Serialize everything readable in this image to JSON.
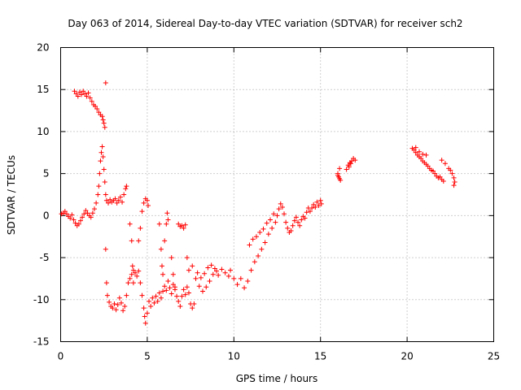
{
  "colors": {
    "series": "#ff0000",
    "grid": "#a0a0a0",
    "axis": "#000000",
    "background": "#ffffff"
  },
  "chart_data": {
    "type": "scatter",
    "title": "Day 063 of 2014, Sidereal Day-to-day VTEC variation (SDTVAR) for receiver sch2",
    "xlabel": "GPS time / hours",
    "ylabel": "SDTVAR / TECUs",
    "xlim": [
      0,
      25
    ],
    "ylim": [
      -15,
      20
    ],
    "xticks": [
      0,
      5,
      10,
      15,
      20,
      25
    ],
    "yticks": [
      -15,
      -10,
      -5,
      0,
      5,
      10,
      15,
      20
    ],
    "xtick_labels": [
      "0",
      "5",
      "10",
      "15",
      "20",
      "25"
    ],
    "ytick_labels": [
      "-15",
      "-10",
      "-5",
      "0",
      "5",
      "10",
      "15",
      "20"
    ],
    "grid": true,
    "marker": "plus",
    "series": [
      {
        "name": "SDTVAR",
        "color": "#ff0000",
        "points": [
          [
            0.05,
            0.2
          ],
          [
            0.15,
            0.3
          ],
          [
            0.25,
            0.5
          ],
          [
            0.35,
            0.2
          ],
          [
            0.45,
            -0.1
          ],
          [
            0.55,
            -0.3
          ],
          [
            0.65,
            0.1
          ],
          [
            0.75,
            -0.5
          ],
          [
            0.85,
            -0.9
          ],
          [
            0.95,
            -1.2
          ],
          [
            1.05,
            -1.0
          ],
          [
            1.15,
            -0.6
          ],
          [
            1.25,
            -0.2
          ],
          [
            1.35,
            0.2
          ],
          [
            1.45,
            0.6
          ],
          [
            1.55,
            0.3
          ],
          [
            1.65,
            0.0
          ],
          [
            1.75,
            -0.2
          ],
          [
            1.85,
            0.3
          ],
          [
            1.95,
            0.8
          ],
          [
            2.05,
            1.5
          ],
          [
            2.15,
            2.5
          ],
          [
            2.2,
            3.5
          ],
          [
            2.25,
            5.0
          ],
          [
            2.3,
            6.5
          ],
          [
            2.35,
            7.5
          ],
          [
            2.4,
            8.2
          ],
          [
            2.45,
            7.0
          ],
          [
            2.5,
            5.5
          ],
          [
            2.55,
            4.0
          ],
          [
            2.6,
            2.5
          ],
          [
            2.65,
            1.8
          ],
          [
            2.75,
            1.5
          ],
          [
            2.85,
            1.9
          ],
          [
            2.95,
            1.6
          ],
          [
            3.05,
            1.8
          ],
          [
            3.15,
            2.0
          ],
          [
            3.25,
            1.5
          ],
          [
            3.35,
            1.8
          ],
          [
            3.45,
            2.2
          ],
          [
            3.55,
            1.6
          ],
          [
            3.65,
            2.5
          ],
          [
            3.75,
            3.2
          ],
          [
            3.8,
            3.5
          ],
          [
            0.8,
            14.8
          ],
          [
            0.9,
            14.5
          ],
          [
            1.0,
            14.2
          ],
          [
            1.1,
            14.7
          ],
          [
            1.2,
            14.4
          ],
          [
            1.3,
            14.8
          ],
          [
            1.4,
            14.5
          ],
          [
            1.5,
            14.2
          ],
          [
            1.6,
            14.6
          ],
          [
            1.7,
            14.0
          ],
          [
            1.8,
            13.6
          ],
          [
            1.9,
            13.2
          ],
          [
            2.0,
            13.0
          ],
          [
            2.1,
            12.7
          ],
          [
            2.2,
            12.3
          ],
          [
            2.3,
            12.0
          ],
          [
            2.4,
            11.8
          ],
          [
            2.45,
            11.4
          ],
          [
            2.5,
            11.0
          ],
          [
            2.55,
            10.5
          ],
          [
            2.6,
            15.8
          ],
          [
            2.6,
            -4.0
          ],
          [
            2.65,
            -8.0
          ],
          [
            2.7,
            -9.5
          ],
          [
            2.8,
            -10.3
          ],
          [
            2.9,
            -10.8
          ],
          [
            3.0,
            -11.0
          ],
          [
            3.1,
            -10.5
          ],
          [
            3.2,
            -11.2
          ],
          [
            3.3,
            -10.6
          ],
          [
            3.4,
            -9.8
          ],
          [
            3.5,
            -10.4
          ],
          [
            3.6,
            -11.3
          ],
          [
            3.7,
            -10.8
          ],
          [
            3.8,
            -9.5
          ],
          [
            3.9,
            -8.0
          ],
          [
            4.0,
            -7.5
          ],
          [
            4.1,
            -7.0
          ],
          [
            4.2,
            -6.5
          ],
          [
            4.3,
            -6.8
          ],
          [
            4.4,
            -7.2
          ],
          [
            4.5,
            -6.6
          ],
          [
            4.0,
            -1.0
          ],
          [
            4.1,
            -3.0
          ],
          [
            4.15,
            -6.0
          ],
          [
            4.2,
            -8.0
          ],
          [
            4.5,
            -3.0
          ],
          [
            4.6,
            -1.5
          ],
          [
            4.7,
            0.5
          ],
          [
            4.8,
            1.5
          ],
          [
            4.9,
            2.0
          ],
          [
            5.0,
            1.8
          ],
          [
            5.05,
            1.2
          ],
          [
            4.6,
            -8.0
          ],
          [
            4.7,
            -9.5
          ],
          [
            4.8,
            -11.0
          ],
          [
            4.85,
            -12.0
          ],
          [
            4.9,
            -12.8
          ],
          [
            5.0,
            -11.6
          ],
          [
            5.1,
            -10.2
          ],
          [
            5.2,
            -10.8
          ],
          [
            5.3,
            -9.8
          ],
          [
            5.4,
            -10.4
          ],
          [
            5.5,
            -9.6
          ],
          [
            5.6,
            -10.2
          ],
          [
            5.7,
            -9.2
          ],
          [
            5.8,
            -9.8
          ],
          [
            5.9,
            -9.0
          ],
          [
            6.0,
            -8.4
          ],
          [
            6.1,
            -8.9
          ],
          [
            6.2,
            -7.8
          ],
          [
            6.3,
            -8.6
          ],
          [
            6.4,
            -9.3
          ],
          [
            6.5,
            -8.2
          ],
          [
            6.6,
            -8.8
          ],
          [
            6.7,
            -9.6
          ],
          [
            6.8,
            -10.2
          ],
          [
            6.9,
            -10.8
          ],
          [
            7.0,
            -9.6
          ],
          [
            7.1,
            -8.8
          ],
          [
            7.2,
            -9.4
          ],
          [
            7.3,
            -8.5
          ],
          [
            7.4,
            -9.2
          ],
          [
            7.5,
            -10.5
          ],
          [
            7.6,
            -11.0
          ],
          [
            7.7,
            -10.5
          ],
          [
            5.7,
            -1.0
          ],
          [
            5.8,
            -4.0
          ],
          [
            5.85,
            -6.0
          ],
          [
            5.9,
            -7.0
          ],
          [
            6.0,
            -3.0
          ],
          [
            6.1,
            -1.0
          ],
          [
            6.15,
            0.3
          ],
          [
            6.2,
            -0.5
          ],
          [
            6.4,
            -5.0
          ],
          [
            6.5,
            -7.0
          ],
          [
            6.6,
            -8.5
          ],
          [
            6.8,
            -1.0
          ],
          [
            6.9,
            -1.3
          ],
          [
            7.0,
            -1.2
          ],
          [
            7.1,
            -1.5
          ],
          [
            7.2,
            -1.1
          ],
          [
            7.3,
            -5.0
          ],
          [
            7.4,
            -6.5
          ],
          [
            7.6,
            -6.0
          ],
          [
            7.8,
            -7.5
          ],
          [
            8.0,
            -8.4
          ],
          [
            8.2,
            -9.0
          ],
          [
            8.4,
            -8.5
          ],
          [
            8.6,
            -7.8
          ],
          [
            8.8,
            -7.0
          ],
          [
            9.0,
            -6.6
          ],
          [
            7.9,
            -6.8
          ],
          [
            8.1,
            -7.4
          ],
          [
            8.3,
            -6.9
          ],
          [
            8.5,
            -6.2
          ],
          [
            8.7,
            -5.9
          ],
          [
            8.9,
            -6.3
          ],
          [
            9.1,
            -7.1
          ],
          [
            9.3,
            -6.4
          ],
          [
            9.5,
            -6.8
          ],
          [
            9.7,
            -7.2
          ],
          [
            9.8,
            -6.5
          ],
          [
            10.0,
            -7.5
          ],
          [
            10.2,
            -8.2
          ],
          [
            10.4,
            -7.5
          ],
          [
            10.6,
            -8.6
          ],
          [
            10.8,
            -7.8
          ],
          [
            11.0,
            -6.5
          ],
          [
            11.2,
            -5.5
          ],
          [
            11.4,
            -4.8
          ],
          [
            11.6,
            -4.0
          ],
          [
            11.8,
            -3.2
          ],
          [
            12.0,
            -2.2
          ],
          [
            12.2,
            -1.5
          ],
          [
            12.4,
            -0.8
          ],
          [
            12.5,
            0.0
          ],
          [
            12.6,
            0.8
          ],
          [
            12.7,
            1.4
          ],
          [
            12.8,
            1.0
          ],
          [
            12.9,
            0.2
          ],
          [
            13.0,
            -0.8
          ],
          [
            13.1,
            -1.5
          ],
          [
            13.2,
            -2.0
          ],
          [
            13.3,
            -1.8
          ],
          [
            13.4,
            -1.2
          ],
          [
            13.5,
            -0.6
          ],
          [
            13.6,
            -0.2
          ],
          [
            13.7,
            -0.8
          ],
          [
            13.8,
            -1.2
          ],
          [
            13.9,
            -0.5
          ],
          [
            14.0,
            -0.1
          ],
          [
            14.1,
            -0.3
          ],
          [
            14.2,
            0.4
          ],
          [
            14.3,
            0.9
          ],
          [
            14.4,
            0.5
          ],
          [
            14.5,
            0.9
          ],
          [
            14.6,
            1.3
          ],
          [
            14.7,
            1.0
          ],
          [
            14.8,
            1.6
          ],
          [
            14.9,
            1.2
          ],
          [
            15.0,
            1.8
          ],
          [
            15.05,
            1.4
          ],
          [
            10.9,
            -3.5
          ],
          [
            11.1,
            -2.8
          ],
          [
            11.3,
            -2.5
          ],
          [
            11.5,
            -2.0
          ],
          [
            11.7,
            -1.6
          ],
          [
            11.9,
            -0.9
          ],
          [
            12.1,
            -0.5
          ],
          [
            12.3,
            0.2
          ],
          [
            16.0,
            5.0
          ],
          [
            16.05,
            4.6
          ],
          [
            16.1,
            4.4
          ],
          [
            16.0,
            4.8
          ],
          [
            16.15,
            4.2
          ],
          [
            16.1,
            5.6
          ],
          [
            16.5,
            5.5
          ],
          [
            16.6,
            6.0
          ],
          [
            16.7,
            6.3
          ],
          [
            16.8,
            6.5
          ],
          [
            16.9,
            6.8
          ],
          [
            17.0,
            6.6
          ],
          [
            16.65,
            5.8
          ],
          [
            16.75,
            6.2
          ],
          [
            20.3,
            8.0
          ],
          [
            20.4,
            7.8
          ],
          [
            20.5,
            7.5
          ],
          [
            20.6,
            7.2
          ],
          [
            20.7,
            7.0
          ],
          [
            20.8,
            6.8
          ],
          [
            20.9,
            6.5
          ],
          [
            21.0,
            6.3
          ],
          [
            21.1,
            6.1
          ],
          [
            21.2,
            5.9
          ],
          [
            21.3,
            5.6
          ],
          [
            21.4,
            5.4
          ],
          [
            21.5,
            5.3
          ],
          [
            21.6,
            5.0
          ],
          [
            21.7,
            4.7
          ],
          [
            21.8,
            4.5
          ],
          [
            21.9,
            4.6
          ],
          [
            22.0,
            4.3
          ],
          [
            22.1,
            4.1
          ],
          [
            20.5,
            8.1
          ],
          [
            20.7,
            7.6
          ],
          [
            20.9,
            7.3
          ],
          [
            21.1,
            7.2
          ],
          [
            22.0,
            6.6
          ],
          [
            22.2,
            6.2
          ],
          [
            22.4,
            5.6
          ],
          [
            22.5,
            5.4
          ],
          [
            22.6,
            5.0
          ],
          [
            22.7,
            4.5
          ],
          [
            22.75,
            4.0
          ],
          [
            22.7,
            3.6
          ]
        ]
      }
    ]
  }
}
